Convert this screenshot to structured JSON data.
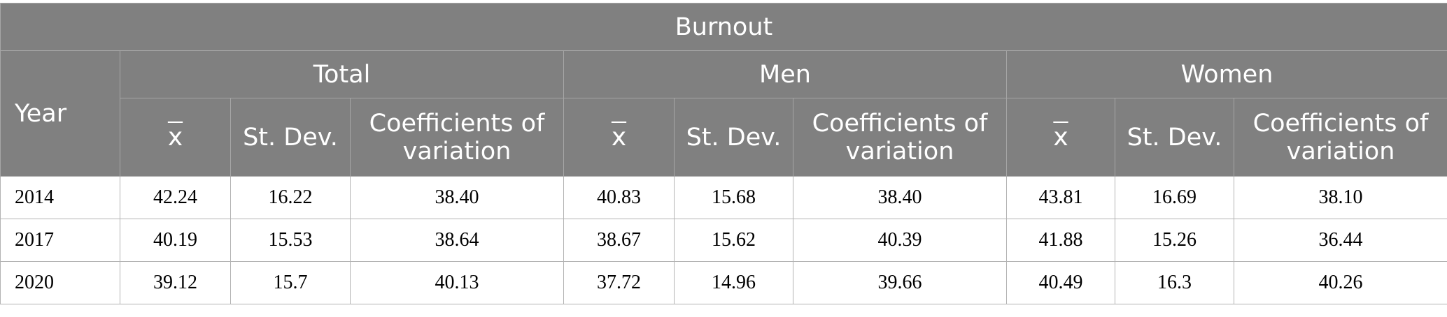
{
  "table": {
    "title": "Burnout",
    "year_header": "Year",
    "groups": [
      "Total",
      "Men",
      "Women"
    ],
    "sub_headers": {
      "mean": "x",
      "sd": "St. Dev.",
      "cv_line1": "Coefficients of",
      "cv_line2": "variation"
    },
    "rows": [
      {
        "year": "2014",
        "total": [
          "42.24",
          "16.22",
          "38.40"
        ],
        "men": [
          "40.83",
          "15.68",
          "38.40"
        ],
        "women": [
          "43.81",
          "16.69",
          "38.10"
        ]
      },
      {
        "year": "2017",
        "total": [
          "40.19",
          "15.53",
          "38.64"
        ],
        "men": [
          "38.67",
          "15.62",
          "40.39"
        ],
        "women": [
          "41.88",
          "15.26",
          "36.44"
        ]
      },
      {
        "year": "2020",
        "total": [
          "39.12",
          "15.7",
          "40.13"
        ],
        "men": [
          "37.72",
          "14.96",
          "39.66"
        ],
        "women": [
          "40.49",
          "16.3",
          "40.26"
        ]
      }
    ]
  }
}
